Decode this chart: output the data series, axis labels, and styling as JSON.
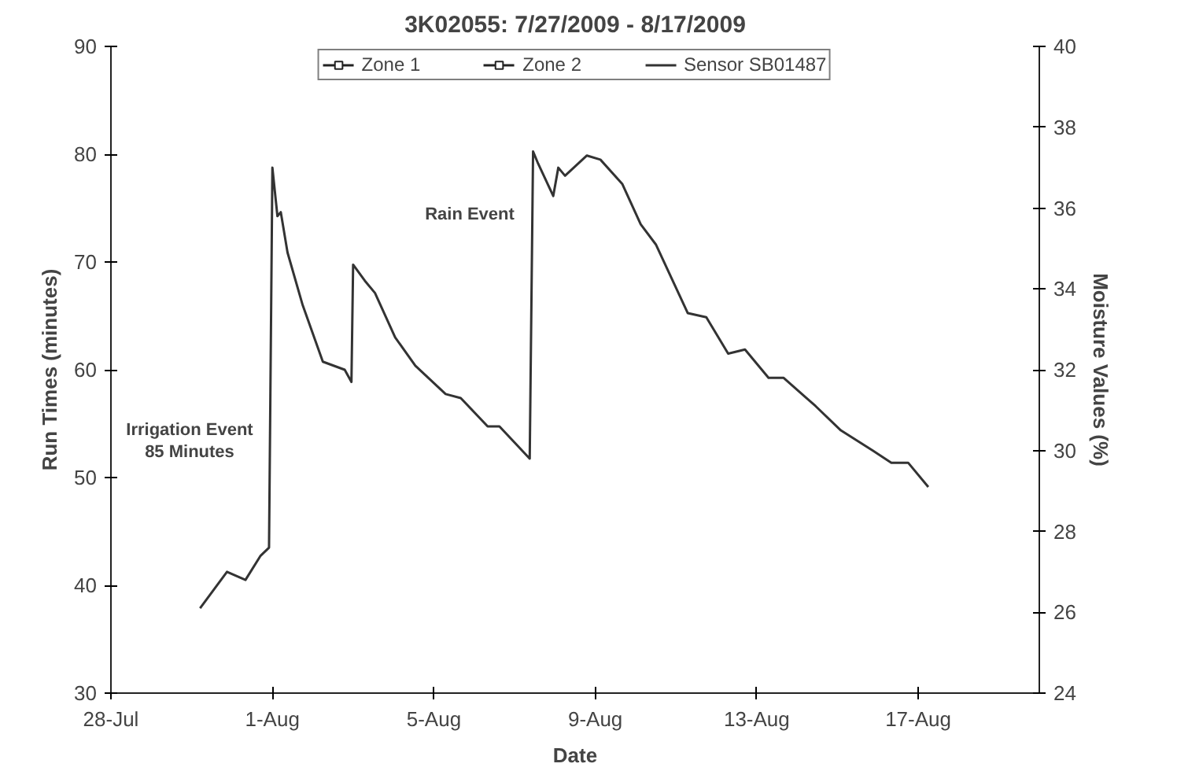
{
  "chart_data": {
    "type": "line",
    "title": "3K02055: 7/27/2009 - 8/17/2009",
    "xlabel": "Date",
    "ylabel": "Run Times (minutes)",
    "y2label": "Moisture Values (%)",
    "xlim": [
      "2009-07-28",
      "2009-08-20"
    ],
    "xticks": [
      {
        "value": "2009-07-28",
        "label": "28-Jul"
      },
      {
        "value": "2009-08-01",
        "label": "1-Aug"
      },
      {
        "value": "2009-08-05",
        "label": "5-Aug"
      },
      {
        "value": "2009-08-09",
        "label": "9-Aug"
      },
      {
        "value": "2009-08-13",
        "label": "13-Aug"
      },
      {
        "value": "2009-08-17",
        "label": "17-Aug"
      }
    ],
    "ylim": [
      30,
      90
    ],
    "yticks": [
      30,
      40,
      50,
      60,
      70,
      80,
      90
    ],
    "y2lim": [
      24,
      40
    ],
    "y2ticks": [
      24,
      26,
      28,
      30,
      32,
      34,
      36,
      38,
      40
    ],
    "grid": false,
    "legend": "top",
    "annotations": [
      "Irrigation Event\n85 Minutes",
      "Rain Event"
    ],
    "series": [
      {
        "name": "Zone 1",
        "color": "#222222",
        "marker": "square"
      },
      {
        "name": "Zone 2",
        "color": "#222222",
        "marker": "square"
      },
      {
        "name": "Sensor SB01487",
        "color": "#333333",
        "marker": "none",
        "axis": "y2",
        "x": [
          "2009-07-30T05:00",
          "2009-07-30T21:00",
          "2009-07-31T08:00",
          "2009-07-31T17:00",
          "2009-07-31T22:00",
          "2009-08-01T00:00",
          "2009-08-01T03:00",
          "2009-08-01T05:00",
          "2009-08-01T09:00",
          "2009-08-01T18:00",
          "2009-08-02T06:00",
          "2009-08-02T19:00",
          "2009-08-02T23:00",
          "2009-08-03T00:00",
          "2009-08-03T07:00",
          "2009-08-03T13:00",
          "2009-08-04T01:00",
          "2009-08-04T13:00",
          "2009-08-05T07:00",
          "2009-08-05T16:00",
          "2009-08-06T08:00",
          "2009-08-06T15:00",
          "2009-08-07T09:00",
          "2009-08-07T11:00",
          "2009-08-07T14:00",
          "2009-08-07T23:00",
          "2009-08-08T02:00",
          "2009-08-08T06:00",
          "2009-08-08T19:00",
          "2009-08-09T03:00",
          "2009-08-09T16:00",
          "2009-08-10T03:00",
          "2009-08-10T12:00",
          "2009-08-11T07:00",
          "2009-08-11T18:00",
          "2009-08-12T07:00",
          "2009-08-12T17:00",
          "2009-08-13T07:00",
          "2009-08-13T16:00",
          "2009-08-14T11:00",
          "2009-08-15T02:00",
          "2009-08-15T21:00",
          "2009-08-16T08:00",
          "2009-08-16T18:00",
          "2009-08-17T06:00"
        ],
        "values": [
          26.1,
          27.0,
          26.8,
          27.4,
          27.6,
          37.0,
          35.8,
          35.9,
          34.9,
          33.6,
          32.2,
          32.0,
          31.7,
          34.6,
          34.2,
          33.9,
          32.8,
          32.1,
          31.4,
          31.3,
          30.6,
          30.6,
          29.8,
          37.4,
          37.1,
          36.3,
          37.0,
          36.8,
          37.3,
          37.2,
          36.6,
          35.6,
          35.1,
          33.4,
          33.3,
          32.4,
          32.5,
          31.8,
          31.8,
          31.1,
          30.5,
          30.0,
          29.7,
          29.7,
          29.1
        ]
      }
    ]
  }
}
